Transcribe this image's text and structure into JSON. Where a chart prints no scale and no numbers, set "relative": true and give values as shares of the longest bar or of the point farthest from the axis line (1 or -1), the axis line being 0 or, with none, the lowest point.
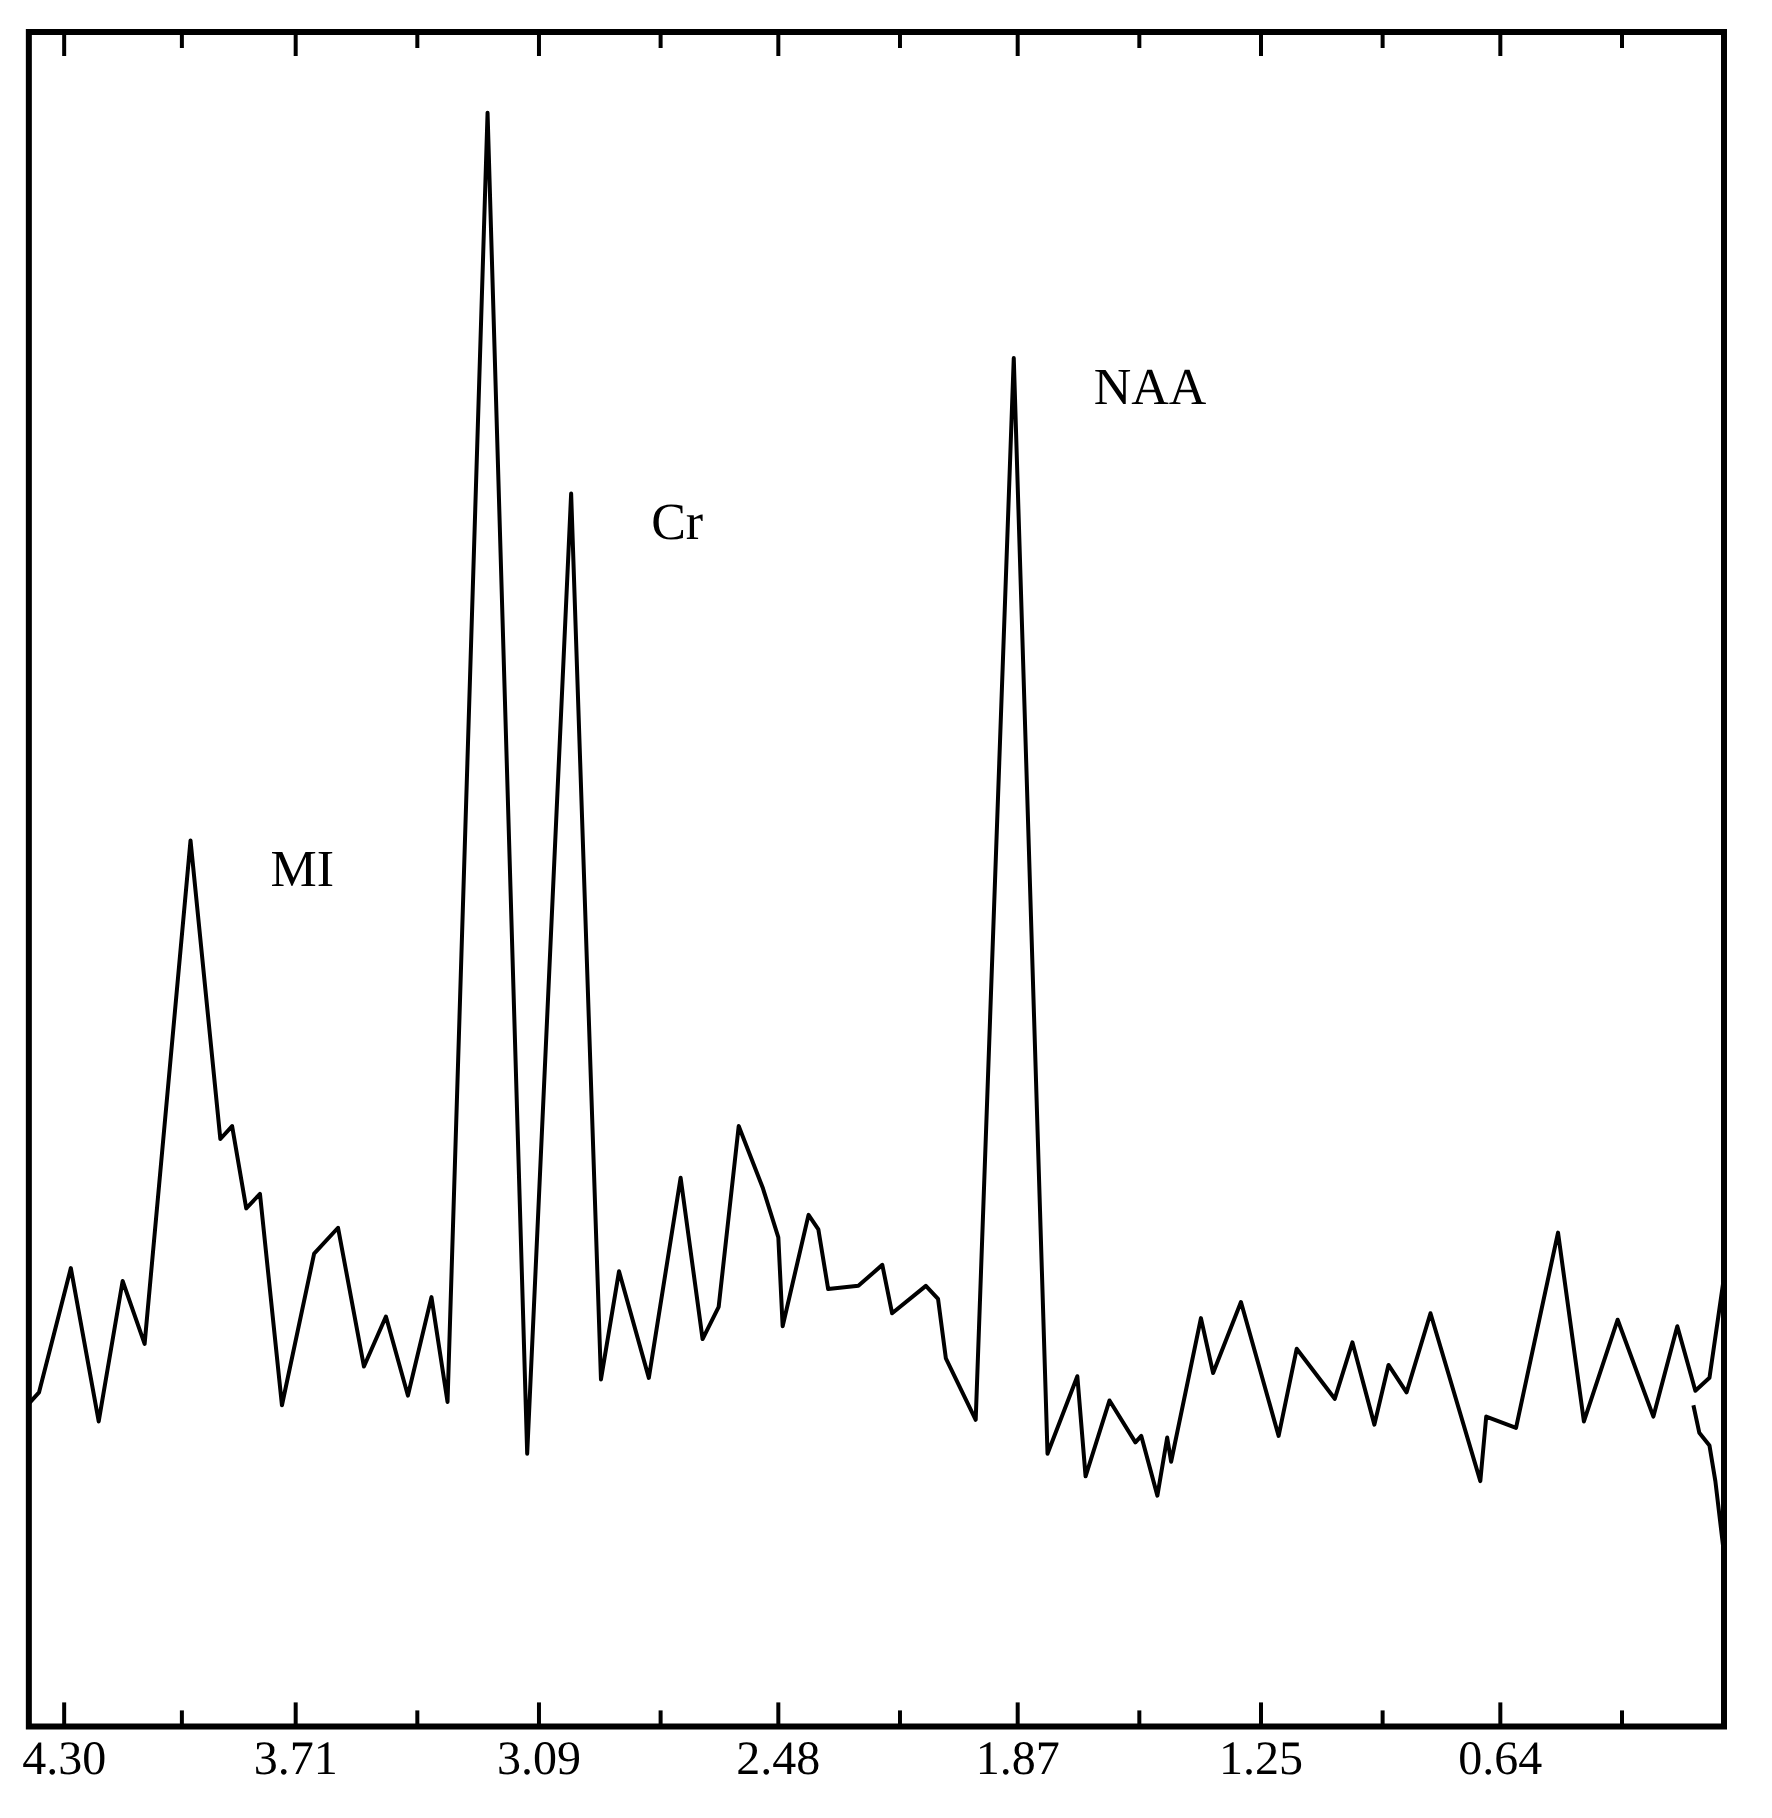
{
  "chart_data": {
    "type": "line",
    "relative": true,
    "grid": false,
    "legend": false,
    "marker": "none",
    "line_style": "solid",
    "xlim": [
      4.39,
      0.07
    ],
    "xticks": [
      {
        "value": 4.3,
        "label": "4.30"
      },
      {
        "value": 4.0,
        "label": null
      },
      3.71,
      {
        "value": 3.4,
        "label": null
      },
      3.09,
      {
        "value": 2.78,
        "label": null
      },
      2.48,
      {
        "value": 2.17,
        "label": null
      },
      1.87,
      {
        "value": 1.56,
        "label": null
      },
      1.25,
      {
        "value": 0.94,
        "label": null
      },
      0.64,
      {
        "value": 0.33,
        "label": null
      }
    ],
    "annotations": [
      {
        "text": "MI",
        "x": 3.978,
        "y": 0.549
      },
      {
        "text": "Cr",
        "x": 3.008,
        "y": 0.764
      },
      {
        "text": "NAA",
        "x": 1.88,
        "y": 0.848
      }
    ],
    "series": [
      {
        "color": "#000000",
        "x": [
          4.39,
          4.364,
          4.283,
          4.212,
          4.151,
          4.095,
          3.978,
          3.902,
          3.872,
          3.836,
          3.801,
          3.745,
          3.663,
          3.602,
          3.536,
          3.48,
          3.424,
          3.364,
          3.323,
          3.221,
          3.12,
          3.008,
          2.932,
          2.886,
          2.81,
          2.729,
          2.673,
          2.632,
          2.581,
          2.52,
          2.48,
          2.469,
          2.403,
          2.378,
          2.353,
          2.276,
          2.215,
          2.19,
          2.104,
          2.073,
          2.053,
          1.977,
          1.88,
          1.794,
          1.718,
          1.697,
          1.636,
          1.57,
          1.555,
          1.514,
          1.489,
          1.479,
          1.403,
          1.372,
          1.301,
          1.205,
          1.159,
          1.062,
          1.017,
          0.961,
          0.925,
          0.879,
          0.818,
          0.691,
          0.676,
          0.6,
          0.493,
          0.427,
          0.341,
          0.25,
          0.189,
          0.143,
          0.107,
          0.072
        ],
        "values": [
          0.2,
          0.207,
          0.284,
          0.189,
          0.276,
          0.237,
          0.549,
          0.364,
          0.372,
          0.321,
          0.33,
          0.199,
          0.293,
          0.309,
          0.223,
          0.254,
          0.205,
          0.266,
          0.201,
          1.0,
          0.169,
          0.764,
          0.215,
          0.282,
          0.216,
          0.34,
          0.24,
          0.26,
          0.372,
          0.334,
          0.303,
          0.248,
          0.317,
          0.308,
          0.271,
          0.273,
          0.286,
          0.256,
          0.273,
          0.265,
          0.228,
          0.19,
          0.848,
          0.169,
          0.217,
          0.155,
          0.202,
          0.176,
          0.18,
          0.143,
          0.179,
          0.164,
          0.253,
          0.219,
          0.263,
          0.18,
          0.234,
          0.203,
          0.238,
          0.187,
          0.224,
          0.207,
          0.256,
          0.152,
          0.192,
          0.185,
          0.306,
          0.189,
          0.252,
          0.192,
          0.248,
          0.208,
          0.216,
          0.275
        ]
      },
      {
        "color": "#000000",
        "x": [
          0.148,
          0.133,
          0.107,
          0.092,
          0.072
        ],
        "values": [
          0.199,
          0.182,
          0.174,
          0.152,
          0.111
        ]
      }
    ]
  }
}
